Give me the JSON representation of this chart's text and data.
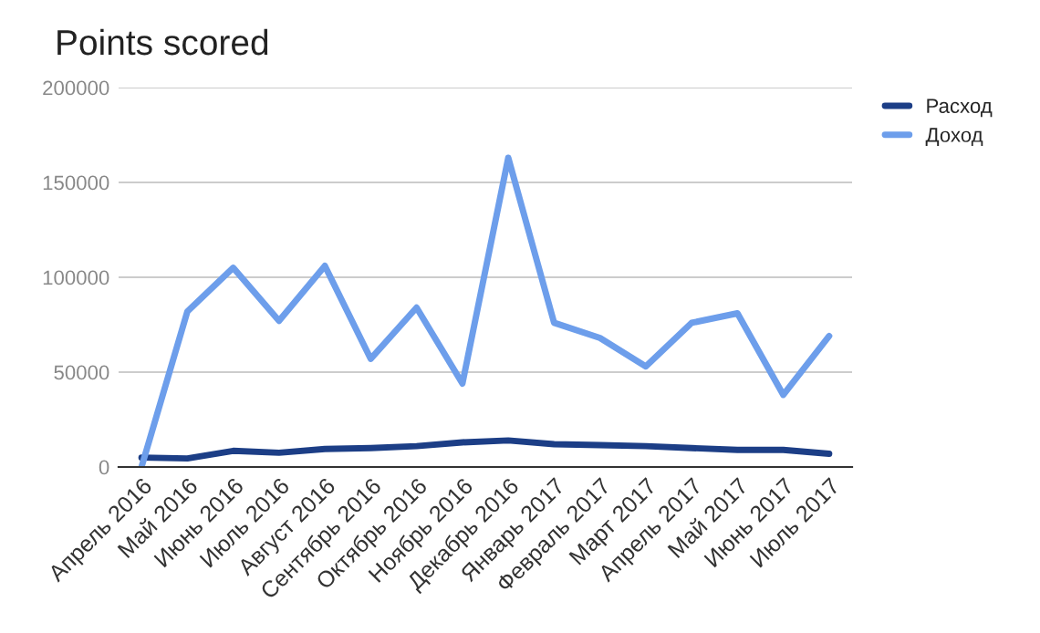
{
  "chart_data": {
    "type": "line",
    "title": "Points scored",
    "categories": [
      "Апрель 2016",
      "Май 2016",
      "Июнь 2016",
      "Июль 2016",
      "Август 2016",
      "Сентябрь 2016",
      "Октябрь 2016",
      "Ноябрь 2016",
      "Декабрь 2016",
      "Январь 2017",
      "Февраль 2017",
      "Март 2017",
      "Апрель 2017",
      "Май 2017",
      "Июнь 2017",
      "Июль 2017"
    ],
    "series": [
      {
        "name": "Расход",
        "color": "#1c3e86",
        "values": [
          5000,
          4500,
          8500,
          7500,
          9500,
          10000,
          11000,
          13000,
          14000,
          12000,
          11500,
          11000,
          10000,
          9000,
          9000,
          7000
        ]
      },
      {
        "name": "Доход",
        "color": "#6d9eeb",
        "values": [
          0,
          82000,
          105000,
          77000,
          106000,
          57000,
          84000,
          44000,
          163000,
          76000,
          68000,
          53000,
          76000,
          81000,
          38000,
          69000
        ]
      }
    ],
    "ylim": [
      0,
      200000
    ],
    "yticks": [
      0,
      50000,
      100000,
      150000,
      200000
    ],
    "grid": "y",
    "legend": "top right",
    "marker": "none",
    "line_style": "solid"
  }
}
